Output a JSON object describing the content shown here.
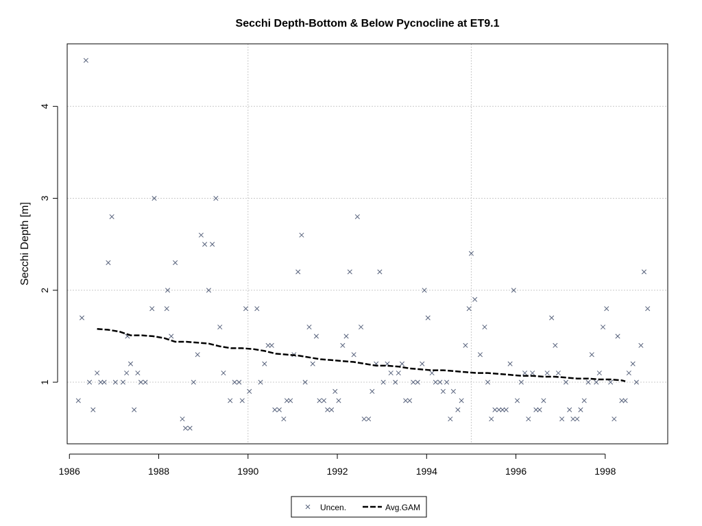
{
  "chart_data": {
    "type": "scatter",
    "title": "Secchi Depth-Bottom & Below Pycnocline at ET9.1",
    "ylabel": "Secchi Depth [m]",
    "xlabel": "",
    "xlim": [
      1985.95,
      1999.4
    ],
    "ylim": [
      0.33,
      4.68
    ],
    "x_ticks": [
      1986,
      1988,
      1990,
      1992,
      1994,
      1996,
      1998
    ],
    "y_ticks": [
      1,
      2,
      3,
      4
    ],
    "x_grid": [
      1990,
      1995
    ],
    "y_grid": [
      1,
      2,
      3,
      4
    ],
    "grid": true,
    "legend_placement": "bottom-center",
    "series": [
      {
        "name": "Uncen.",
        "kind": "points",
        "color": "#55607a",
        "marker": "x",
        "points": [
          [
            1986.2,
            0.8
          ],
          [
            1986.28,
            1.7
          ],
          [
            1986.37,
            4.5
          ],
          [
            1986.45,
            1.0
          ],
          [
            1986.53,
            0.7
          ],
          [
            1986.62,
            1.1
          ],
          [
            1986.7,
            1.0
          ],
          [
            1986.78,
            1.0
          ],
          [
            1986.87,
            2.3
          ],
          [
            1986.95,
            2.8
          ],
          [
            1987.03,
            1.0
          ],
          [
            1987.2,
            1.0
          ],
          [
            1987.28,
            1.1
          ],
          [
            1987.3,
            1.5
          ],
          [
            1987.37,
            1.2
          ],
          [
            1987.45,
            0.7
          ],
          [
            1987.53,
            1.1
          ],
          [
            1987.6,
            1.0
          ],
          [
            1987.7,
            1.0
          ],
          [
            1987.85,
            1.8
          ],
          [
            1987.9,
            3.0
          ],
          [
            1988.18,
            1.8
          ],
          [
            1988.2,
            2.0
          ],
          [
            1988.28,
            1.5
          ],
          [
            1988.37,
            2.3
          ],
          [
            1988.53,
            0.6
          ],
          [
            1988.6,
            0.5
          ],
          [
            1988.7,
            0.5
          ],
          [
            1988.78,
            1.0
          ],
          [
            1988.87,
            1.3
          ],
          [
            1988.95,
            2.6
          ],
          [
            1989.03,
            2.5
          ],
          [
            1989.12,
            2.0
          ],
          [
            1989.2,
            2.5
          ],
          [
            1989.28,
            3.0
          ],
          [
            1989.37,
            1.6
          ],
          [
            1989.45,
            1.1
          ],
          [
            1989.6,
            0.8
          ],
          [
            1989.7,
            1.0
          ],
          [
            1989.8,
            1.0
          ],
          [
            1989.87,
            0.8
          ],
          [
            1989.95,
            1.8
          ],
          [
            1990.03,
            0.9
          ],
          [
            1990.2,
            1.8
          ],
          [
            1990.28,
            1.0
          ],
          [
            1990.37,
            1.2
          ],
          [
            1990.45,
            1.4
          ],
          [
            1990.53,
            1.4
          ],
          [
            1990.6,
            0.7
          ],
          [
            1990.7,
            0.7
          ],
          [
            1990.8,
            0.6
          ],
          [
            1990.87,
            0.8
          ],
          [
            1990.95,
            0.8
          ],
          [
            1991.03,
            1.3
          ],
          [
            1991.12,
            2.2
          ],
          [
            1991.2,
            2.6
          ],
          [
            1991.28,
            1.0
          ],
          [
            1991.37,
            1.6
          ],
          [
            1991.45,
            1.2
          ],
          [
            1991.53,
            1.5
          ],
          [
            1991.6,
            0.8
          ],
          [
            1991.7,
            0.8
          ],
          [
            1991.78,
            0.7
          ],
          [
            1991.87,
            0.7
          ],
          [
            1991.95,
            0.9
          ],
          [
            1992.03,
            0.8
          ],
          [
            1992.12,
            1.4
          ],
          [
            1992.2,
            1.5
          ],
          [
            1992.28,
            2.2
          ],
          [
            1992.37,
            1.3
          ],
          [
            1992.45,
            2.8
          ],
          [
            1992.53,
            1.6
          ],
          [
            1992.6,
            0.6
          ],
          [
            1992.7,
            0.6
          ],
          [
            1992.78,
            0.9
          ],
          [
            1992.87,
            1.2
          ],
          [
            1992.95,
            2.2
          ],
          [
            1993.03,
            1.0
          ],
          [
            1993.12,
            1.2
          ],
          [
            1993.2,
            1.1
          ],
          [
            1993.3,
            1.0
          ],
          [
            1993.37,
            1.1
          ],
          [
            1993.45,
            1.2
          ],
          [
            1993.53,
            0.8
          ],
          [
            1993.62,
            0.8
          ],
          [
            1993.7,
            1.0
          ],
          [
            1993.8,
            1.0
          ],
          [
            1993.9,
            1.2
          ],
          [
            1993.95,
            2.0
          ],
          [
            1994.03,
            1.7
          ],
          [
            1994.12,
            1.1
          ],
          [
            1994.2,
            1.0
          ],
          [
            1994.3,
            1.0
          ],
          [
            1994.37,
            0.9
          ],
          [
            1994.45,
            1.0
          ],
          [
            1994.53,
            0.6
          ],
          [
            1994.6,
            0.9
          ],
          [
            1994.7,
            0.7
          ],
          [
            1994.78,
            0.8
          ],
          [
            1994.87,
            1.4
          ],
          [
            1994.95,
            1.8
          ],
          [
            1995.0,
            2.4
          ],
          [
            1995.08,
            1.9
          ],
          [
            1995.2,
            1.3
          ],
          [
            1995.3,
            1.6
          ],
          [
            1995.37,
            1.0
          ],
          [
            1995.45,
            0.6
          ],
          [
            1995.53,
            0.7
          ],
          [
            1995.62,
            0.7
          ],
          [
            1995.7,
            0.7
          ],
          [
            1995.78,
            0.7
          ],
          [
            1995.87,
            1.2
          ],
          [
            1995.95,
            2.0
          ],
          [
            1996.03,
            0.8
          ],
          [
            1996.12,
            1.0
          ],
          [
            1996.2,
            1.1
          ],
          [
            1996.28,
            0.6
          ],
          [
            1996.37,
            1.1
          ],
          [
            1996.45,
            0.7
          ],
          [
            1996.53,
            0.7
          ],
          [
            1996.62,
            0.8
          ],
          [
            1996.7,
            1.1
          ],
          [
            1996.8,
            1.7
          ],
          [
            1996.88,
            1.4
          ],
          [
            1996.95,
            1.1
          ],
          [
            1997.03,
            0.6
          ],
          [
            1997.12,
            1.0
          ],
          [
            1997.2,
            0.7
          ],
          [
            1997.28,
            0.6
          ],
          [
            1997.37,
            0.6
          ],
          [
            1997.45,
            0.7
          ],
          [
            1997.53,
            0.8
          ],
          [
            1997.62,
            1.0
          ],
          [
            1997.7,
            1.3
          ],
          [
            1997.8,
            1.0
          ],
          [
            1997.87,
            1.1
          ],
          [
            1997.95,
            1.6
          ],
          [
            1998.03,
            1.8
          ],
          [
            1998.12,
            1.0
          ],
          [
            1998.2,
            0.6
          ],
          [
            1998.28,
            1.5
          ],
          [
            1998.37,
            0.8
          ],
          [
            1998.45,
            0.8
          ],
          [
            1998.53,
            1.1
          ],
          [
            1998.62,
            1.2
          ],
          [
            1998.7,
            1.0
          ],
          [
            1998.8,
            1.4
          ],
          [
            1998.87,
            2.2
          ],
          [
            1998.95,
            1.8
          ]
        ]
      },
      {
        "name": "Avg.GAM",
        "kind": "line",
        "color": "#000000",
        "points": [
          [
            1986.62,
            1.58
          ],
          [
            1986.87,
            1.57
          ],
          [
            1987.12,
            1.55
          ],
          [
            1987.37,
            1.51
          ],
          [
            1987.62,
            1.51
          ],
          [
            1987.87,
            1.5
          ],
          [
            1988.12,
            1.48
          ],
          [
            1988.37,
            1.44
          ],
          [
            1988.62,
            1.44
          ],
          [
            1988.87,
            1.43
          ],
          [
            1989.12,
            1.42
          ],
          [
            1989.37,
            1.39
          ],
          [
            1989.62,
            1.37
          ],
          [
            1989.87,
            1.37
          ],
          [
            1990.12,
            1.36
          ],
          [
            1990.37,
            1.34
          ],
          [
            1990.62,
            1.31
          ],
          [
            1990.87,
            1.3
          ],
          [
            1991.12,
            1.29
          ],
          [
            1991.37,
            1.27
          ],
          [
            1991.62,
            1.25
          ],
          [
            1991.87,
            1.24
          ],
          [
            1992.12,
            1.23
          ],
          [
            1992.37,
            1.22
          ],
          [
            1992.62,
            1.2
          ],
          [
            1992.87,
            1.18
          ],
          [
            1993.12,
            1.18
          ],
          [
            1993.37,
            1.17
          ],
          [
            1993.62,
            1.15
          ],
          [
            1993.87,
            1.14
          ],
          [
            1994.12,
            1.13
          ],
          [
            1994.37,
            1.13
          ],
          [
            1994.62,
            1.12
          ],
          [
            1994.87,
            1.11
          ],
          [
            1995.12,
            1.1
          ],
          [
            1995.37,
            1.1
          ],
          [
            1995.62,
            1.09
          ],
          [
            1995.87,
            1.08
          ],
          [
            1996.12,
            1.07
          ],
          [
            1996.37,
            1.07
          ],
          [
            1996.62,
            1.06
          ],
          [
            1996.87,
            1.06
          ],
          [
            1997.12,
            1.05
          ],
          [
            1997.37,
            1.04
          ],
          [
            1997.62,
            1.04
          ],
          [
            1997.87,
            1.03
          ],
          [
            1998.12,
            1.03
          ],
          [
            1998.37,
            1.02
          ],
          [
            1998.45,
            1.01
          ]
        ]
      }
    ]
  }
}
